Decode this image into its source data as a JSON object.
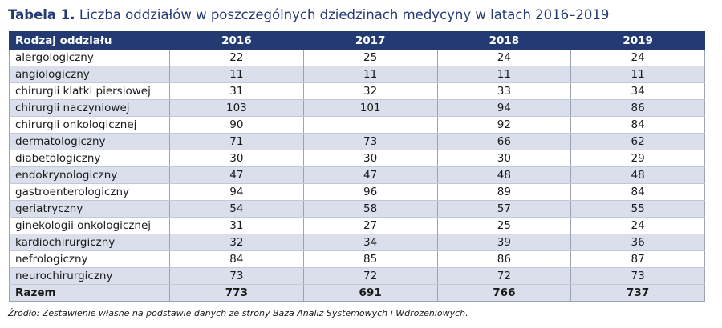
{
  "title": {
    "label": "Tabela 1.",
    "text": "Liczba oddziałów w poszczególnych dziedzinach medycyny w latach 2016–2019"
  },
  "columns": [
    "Rodzaj oddziału",
    "2016",
    "2017",
    "2018",
    "2019"
  ],
  "rows": [
    {
      "name": "alergologiczny",
      "values": [
        "22",
        "25",
        "24",
        "24"
      ]
    },
    {
      "name": "angiologiczny",
      "values": [
        "11",
        "11",
        "11",
        "11"
      ]
    },
    {
      "name": "chirurgii klatki piersiowej",
      "values": [
        "31",
        "32",
        "33",
        "34"
      ]
    },
    {
      "name": "chirurgii naczyniowej",
      "values": [
        "103",
        "101",
        "94",
        "86"
      ]
    },
    {
      "name": "chirurgii onkologicznej",
      "values": [
        "90",
        "",
        "92",
        "84"
      ]
    },
    {
      "name": "dermatologiczny",
      "values": [
        "71",
        "73",
        "66",
        "62"
      ]
    },
    {
      "name": "diabetologiczny",
      "values": [
        "30",
        "30",
        "30",
        "29"
      ]
    },
    {
      "name": "endokrynologiczny",
      "values": [
        "47",
        "47",
        "48",
        "48"
      ]
    },
    {
      "name": "gastroenterologiczny",
      "values": [
        "94",
        "96",
        "89",
        "84"
      ]
    },
    {
      "name": "geriatryczny",
      "values": [
        "54",
        "58",
        "57",
        "55"
      ]
    },
    {
      "name": "ginekologii onkologicznej",
      "values": [
        "31",
        "27",
        "25",
        "24"
      ]
    },
    {
      "name": "kardiochirurgiczny",
      "values": [
        "32",
        "34",
        "39",
        "36"
      ]
    },
    {
      "name": "nefrologiczny",
      "values": [
        "84",
        "85",
        "86",
        "87"
      ]
    },
    {
      "name": "neurochirurgiczny",
      "values": [
        "73",
        "72",
        "72",
        "73"
      ]
    }
  ],
  "total": {
    "name": "Razem",
    "values": [
      "773",
      "691",
      "766",
      "737"
    ]
  },
  "source_note": "Źródło: Zestawienie własne na podstawie danych ze strony Baza Analiz Systemowych i Wdrożeniowych.",
  "colors": {
    "header_bg": "#243a73",
    "stripe": "#dadfeb",
    "title": "#243a73"
  }
}
